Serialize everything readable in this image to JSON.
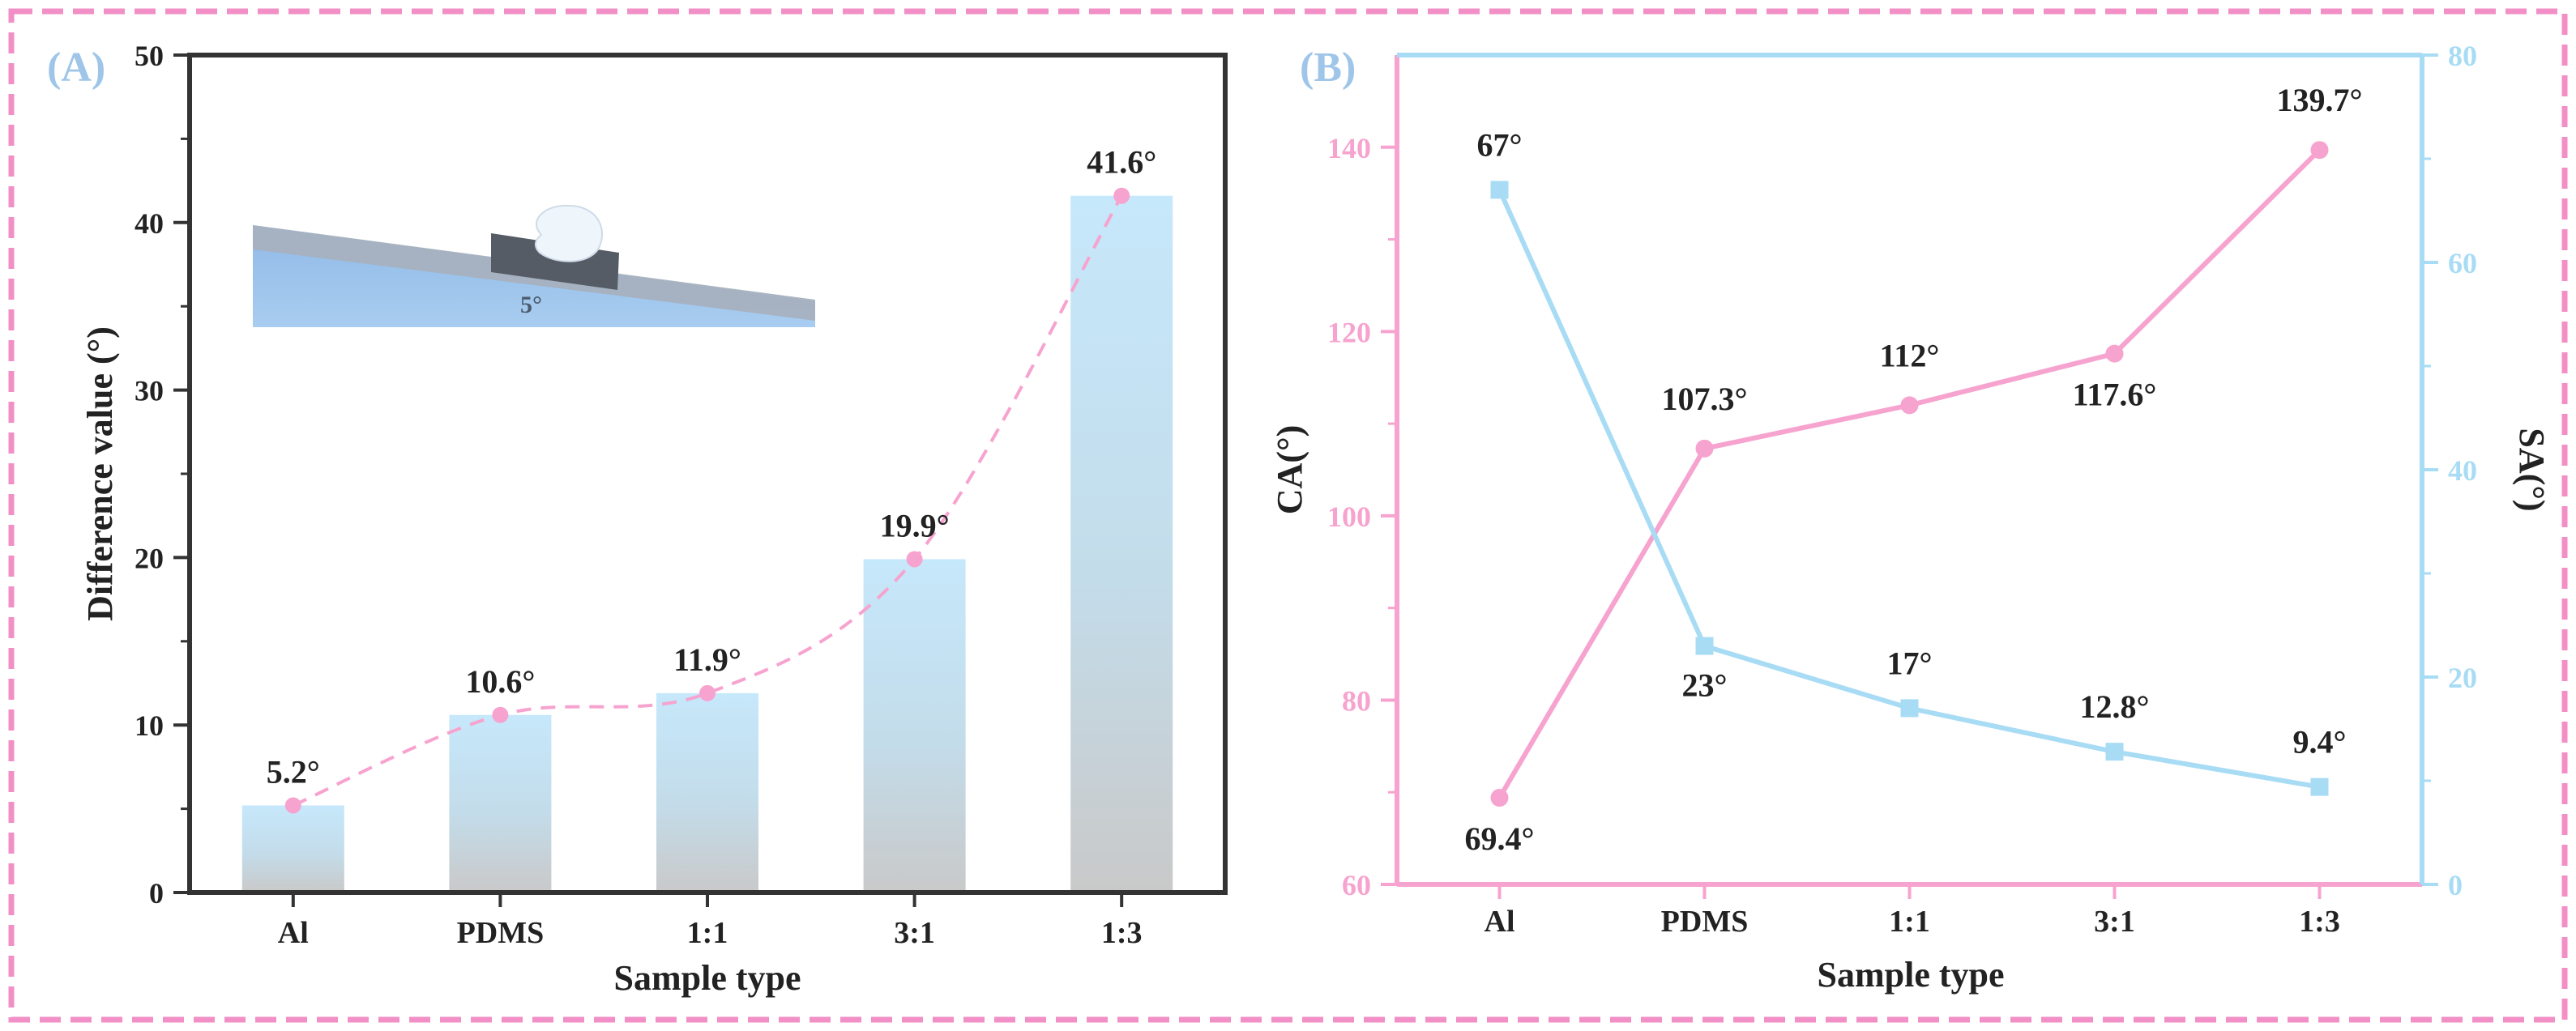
{
  "colors": {
    "frame": "#f28fc6",
    "pink": "#f7a3cf",
    "blue": "#a8dcf5",
    "bar_top": "#c6e8fb",
    "bar_bottom": "#c9c9c9",
    "axis_dark": "#333333"
  },
  "chart_data": [
    {
      "type": "bar",
      "panel_label": "(A)",
      "categories": [
        "Al",
        "PDMS",
        "1:1",
        "3:1",
        "1:3"
      ],
      "values": [
        5.2,
        10.6,
        11.9,
        19.9,
        41.6
      ],
      "value_labels": [
        "5.2°",
        "10.6°",
        "11.9°",
        "19.9°",
        "41.6°"
      ],
      "trend_line": "dashed smooth curve through bar tops",
      "xlabel": "Sample type",
      "ylabel": "Difference value (°)",
      "ylim": [
        0,
        50
      ],
      "yticks": [
        0,
        10,
        20,
        30,
        40,
        50
      ],
      "grid": false,
      "inset": {
        "label": "5°",
        "description_icon": "tilted-plate-droplet-icon"
      }
    },
    {
      "type": "line",
      "panel_label": "(B)",
      "categories": [
        "Al",
        "PDMS",
        "1:1",
        "3:1",
        "1:3"
      ],
      "series": [
        {
          "name": "CA(°)",
          "axis": "left",
          "values": [
            69.4,
            107.3,
            112,
            117.6,
            139.7
          ],
          "value_labels": [
            "69.4°",
            "107.3°",
            "112°",
            "117.6°",
            "139.7°"
          ],
          "marker": "circle",
          "color": "#f7a3cf"
        },
        {
          "name": "SA(°)",
          "axis": "right",
          "values": [
            67,
            23,
            17,
            12.8,
            9.4
          ],
          "value_labels": [
            "67°",
            "23°",
            "17°",
            "12.8°",
            "9.4°"
          ],
          "marker": "square",
          "color": "#a8dcf5"
        }
      ],
      "xlabel": "Sample type",
      "ylabel_left": "CA(°)",
      "ylabel_right": "SA(°)",
      "ylim_left": [
        60,
        150
      ],
      "yticks_left": [
        60,
        80,
        100,
        120,
        140
      ],
      "ylim_right": [
        0,
        80
      ],
      "yticks_right": [
        0,
        20,
        40,
        60,
        80
      ],
      "grid": false
    }
  ]
}
